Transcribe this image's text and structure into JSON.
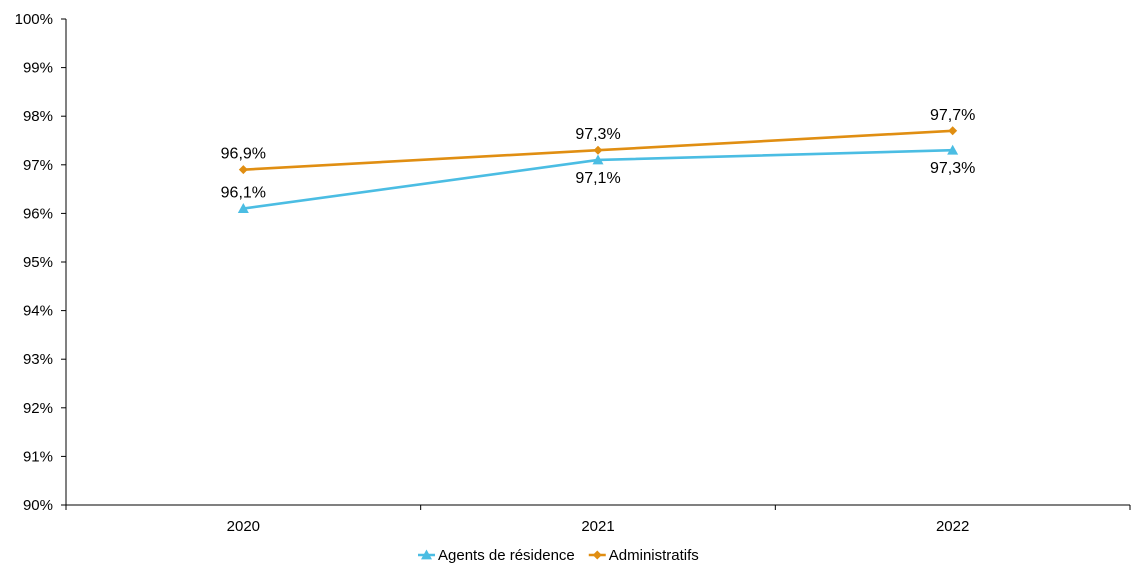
{
  "chart_data": {
    "type": "line",
    "title": "",
    "xlabel": "",
    "ylabel": "",
    "categories": [
      "2020",
      "2021",
      "2022"
    ],
    "ylim": [
      0.9,
      1.0
    ],
    "yticks": [
      0.9,
      0.91,
      0.92,
      0.93,
      0.94,
      0.95,
      0.96,
      0.97,
      0.98,
      0.99,
      1.0
    ],
    "ytick_labels": [
      "90%",
      "91%",
      "92%",
      "93%",
      "94%",
      "95%",
      "96%",
      "97%",
      "98%",
      "99%",
      "100%"
    ],
    "grid": false,
    "legend_position": "bottom",
    "series": [
      {
        "name": "Agents de résidence",
        "values": [
          0.961,
          0.971,
          0.973
        ],
        "labels": [
          "96,1%",
          "97,1%",
          "97,3%"
        ],
        "label_side": [
          "above",
          "below",
          "below"
        ],
        "color": "#4BBDE3",
        "marker": "triangle"
      },
      {
        "name": "Administratifs",
        "values": [
          0.969,
          0.973,
          0.977
        ],
        "labels": [
          "96,9%",
          "97,3%",
          "97,7%"
        ],
        "label_side": [
          "above",
          "above",
          "above"
        ],
        "color": "#E08E12",
        "marker": "diamond"
      }
    ]
  }
}
